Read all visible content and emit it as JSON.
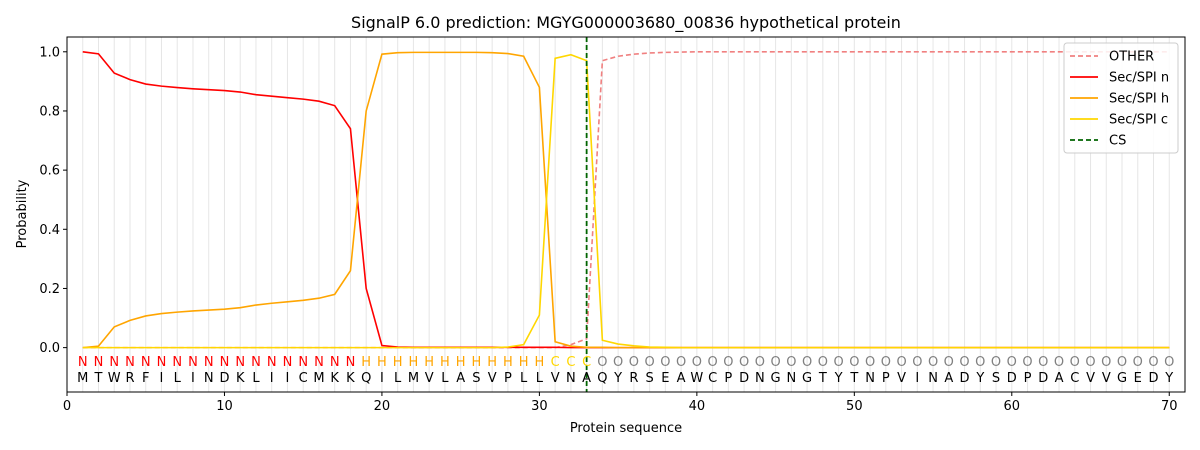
{
  "chart_data": {
    "type": "line",
    "title": "SignalP 6.0 prediction: MGYG000003680_00836 hypothetical protein",
    "xlabel": "Protein sequence",
    "ylabel": "Probability",
    "xlim": [
      0,
      71
    ],
    "ylim": [
      -0.15,
      1.05
    ],
    "x_ticks": [
      0,
      10,
      20,
      30,
      40,
      50,
      60,
      70
    ],
    "y_ticks": [
      0.0,
      0.2,
      0.4,
      0.6,
      0.8,
      1.0
    ],
    "x_tick_labels": [
      "0",
      "10",
      "20",
      "30",
      "40",
      "50",
      "60",
      "70"
    ],
    "y_tick_labels": [
      "0.0",
      "0.2",
      "0.4",
      "0.6",
      "0.8",
      "1.0"
    ],
    "grid": "vertical lines at every residue",
    "legend_position": "top-right",
    "sequence": [
      "M",
      "T",
      "W",
      "R",
      "F",
      "I",
      "L",
      "I",
      "N",
      "D",
      "K",
      "L",
      "I",
      "I",
      "C",
      "M",
      "K",
      "K",
      "Q",
      "I",
      "L",
      "M",
      "V",
      "L",
      "A",
      "S",
      "V",
      "P",
      "L",
      "L",
      "V",
      "N",
      "A",
      "Q",
      "Y",
      "R",
      "S",
      "E",
      "A",
      "W",
      "C",
      "P",
      "D",
      "N",
      "G",
      "N",
      "G",
      "T",
      "Y",
      "T",
      "N",
      "P",
      "V",
      "I",
      "N",
      "A",
      "D",
      "Y",
      "S",
      "D",
      "P",
      "D",
      "A",
      "C",
      "V",
      "V",
      "G",
      "E",
      "D",
      "Y"
    ],
    "region_labels": [
      "N",
      "N",
      "N",
      "N",
      "N",
      "N",
      "N",
      "N",
      "N",
      "N",
      "N",
      "N",
      "N",
      "N",
      "N",
      "N",
      "N",
      "N",
      "H",
      "H",
      "H",
      "H",
      "H",
      "H",
      "H",
      "H",
      "H",
      "H",
      "H",
      "H",
      "C",
      "C",
      "C",
      "O",
      "O",
      "O",
      "O",
      "O",
      "O",
      "O",
      "O",
      "O",
      "O",
      "O",
      "O",
      "O",
      "O",
      "O",
      "O",
      "O",
      "O",
      "O",
      "O",
      "O",
      "O",
      "O",
      "O",
      "O",
      "O",
      "O",
      "O",
      "O",
      "O",
      "O",
      "O",
      "O",
      "O",
      "O",
      "O",
      "O"
    ],
    "region_colors": {
      "N": "#ff0000",
      "H": "#ffa500",
      "C": "#ffd700",
      "O": "#808080"
    },
    "cs_position": 33,
    "series": [
      {
        "name": "OTHER",
        "color": "#f08080",
        "style": "dashed",
        "values": [
          0.0,
          0.0,
          0.0,
          0.0,
          0.0,
          0.0,
          0.0,
          0.0,
          0.0,
          0.0,
          0.0,
          0.0,
          0.0,
          0.0,
          0.0,
          0.0,
          0.0,
          0.0,
          0.0,
          0.0,
          0.0,
          0.0,
          0.0,
          0.0,
          0.0,
          0.0,
          0.0,
          0.0,
          0.0,
          0.0,
          0.0,
          0.01,
          0.03,
          0.97,
          0.985,
          0.992,
          0.996,
          0.998,
          0.999,
          1.0,
          1.0,
          1.0,
          1.0,
          1.0,
          1.0,
          1.0,
          1.0,
          1.0,
          1.0,
          1.0,
          1.0,
          1.0,
          1.0,
          1.0,
          1.0,
          1.0,
          1.0,
          1.0,
          1.0,
          1.0,
          1.0,
          1.0,
          1.0,
          1.0,
          1.0,
          1.0,
          1.0,
          1.0,
          1.0,
          1.0
        ]
      },
      {
        "name": "Sec/SPI n",
        "color": "#ff0000",
        "style": "solid",
        "values": [
          1.0,
          0.993,
          0.928,
          0.906,
          0.891,
          0.884,
          0.879,
          0.875,
          0.872,
          0.869,
          0.864,
          0.855,
          0.85,
          0.845,
          0.84,
          0.833,
          0.818,
          0.74,
          0.2,
          0.007,
          0.002,
          0.001,
          0.001,
          0.001,
          0.001,
          0.001,
          0.001,
          0.001,
          0.001,
          0.001,
          0.001,
          0.0,
          0.0,
          0.0,
          0.0,
          0.0,
          0.0,
          0.0,
          0.0,
          0.0,
          0.0,
          0.0,
          0.0,
          0.0,
          0.0,
          0.0,
          0.0,
          0.0,
          0.0,
          0.0,
          0.0,
          0.0,
          0.0,
          0.0,
          0.0,
          0.0,
          0.0,
          0.0,
          0.0,
          0.0,
          0.0,
          0.0,
          0.0,
          0.0,
          0.0,
          0.0,
          0.0,
          0.0,
          0.0,
          0.0
        ]
      },
      {
        "name": "Sec/SPI h",
        "color": "#ffa500",
        "style": "solid",
        "values": [
          0.0,
          0.005,
          0.07,
          0.092,
          0.107,
          0.115,
          0.12,
          0.124,
          0.127,
          0.13,
          0.135,
          0.144,
          0.15,
          0.155,
          0.16,
          0.167,
          0.18,
          0.26,
          0.8,
          0.992,
          0.997,
          0.998,
          0.998,
          0.998,
          0.998,
          0.998,
          0.997,
          0.994,
          0.985,
          0.88,
          0.02,
          0.005,
          0.001,
          0.001,
          0.0,
          0.0,
          0.0,
          0.0,
          0.0,
          0.0,
          0.0,
          0.0,
          0.0,
          0.0,
          0.0,
          0.0,
          0.0,
          0.0,
          0.0,
          0.0,
          0.0,
          0.0,
          0.0,
          0.0,
          0.0,
          0.0,
          0.0,
          0.0,
          0.0,
          0.0,
          0.0,
          0.0,
          0.0,
          0.0,
          0.0,
          0.0,
          0.0,
          0.0,
          0.0,
          0.0
        ]
      },
      {
        "name": "Sec/SPI c",
        "color": "#ffd700",
        "style": "solid",
        "values": [
          0.0,
          0.0,
          0.0,
          0.0,
          0.0,
          0.0,
          0.0,
          0.0,
          0.0,
          0.0,
          0.0,
          0.0,
          0.0,
          0.0,
          0.0,
          0.0,
          0.0,
          0.0,
          0.0,
          0.0,
          0.0,
          0.0,
          0.0,
          0.0,
          0.0,
          0.0,
          0.0,
          0.002,
          0.01,
          0.11,
          0.978,
          0.99,
          0.97,
          0.025,
          0.012,
          0.006,
          0.002,
          0.001,
          0.0,
          0.0,
          0.0,
          0.0,
          0.0,
          0.0,
          0.0,
          0.0,
          0.0,
          0.0,
          0.0,
          0.0,
          0.0,
          0.0,
          0.0,
          0.0,
          0.0,
          0.0,
          0.0,
          0.0,
          0.0,
          0.0,
          0.0,
          0.0,
          0.0,
          0.0,
          0.0,
          0.0,
          0.0,
          0.0,
          0.0,
          0.0
        ]
      },
      {
        "name": "CS",
        "color": "#006400",
        "style": "dashed",
        "type": "vline",
        "x": 33
      }
    ]
  }
}
